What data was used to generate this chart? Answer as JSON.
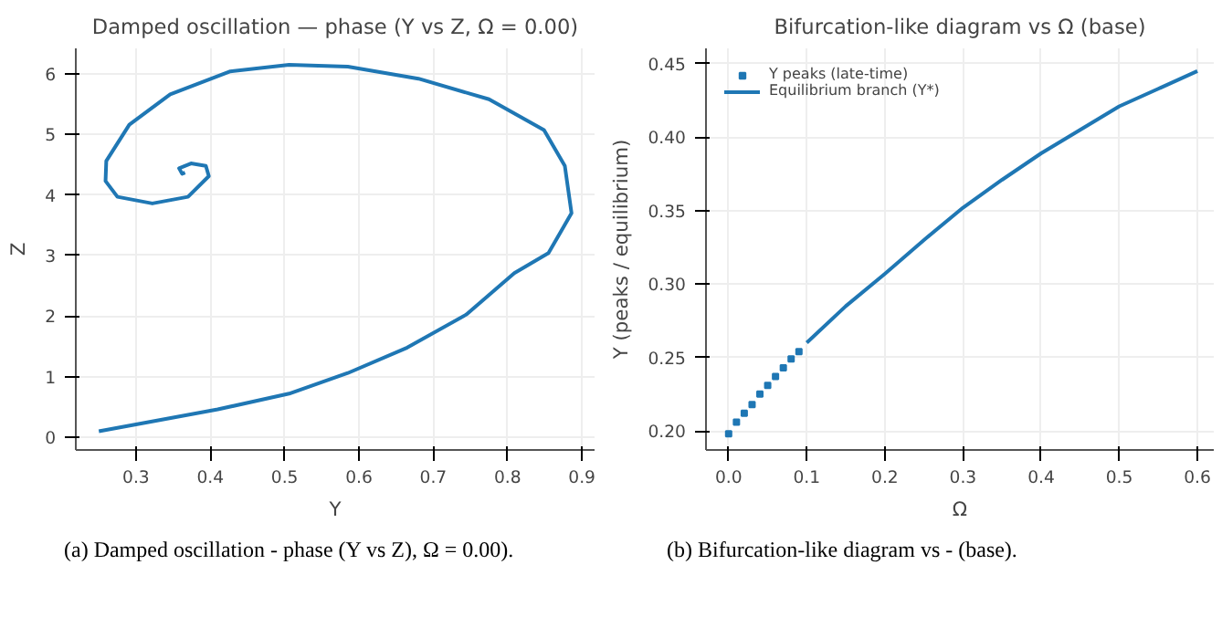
{
  "chart_data": [
    {
      "type": "line",
      "title": "Damped oscillation — phase (Y vs Z, Ω = 0.00)",
      "xlabel": "Y",
      "ylabel": "Z",
      "series": [
        {
          "color": "#1f77b4",
          "x": [
            0.25,
            0.41,
            0.506,
            0.585,
            0.665,
            0.745,
            0.809,
            0.855,
            0.886,
            0.877,
            0.849,
            0.775,
            0.68,
            0.585,
            0.506,
            0.427,
            0.346,
            0.291,
            0.26,
            0.259,
            0.275,
            0.322,
            0.37,
            0.398,
            0.394,
            0.374,
            0.358,
            0.362,
            0.366
          ],
          "values": [
            0.1,
            0.46,
            0.72,
            1.06,
            1.48,
            2.03,
            2.71,
            3.04,
            3.7,
            4.48,
            5.07,
            5.58,
            5.92,
            6.12,
            6.15,
            6.04,
            5.66,
            5.16,
            4.56,
            4.23,
            3.97,
            3.86,
            3.97,
            4.31,
            4.48,
            4.52,
            4.44,
            4.35,
            4.37
          ]
        }
      ],
      "xlim": [
        0.219,
        0.917
      ],
      "ylim": [
        -0.21,
        6.42
      ],
      "xticks": [
        0.3,
        0.4,
        0.5,
        0.6,
        0.7,
        0.8,
        0.9
      ],
      "yticks": [
        0,
        1,
        2,
        3,
        4,
        5,
        6
      ],
      "grid": true,
      "legend": false,
      "annotations": [
        "(a) Damped oscillation - phase (Y vs Z), Ω = 0.00)."
      ]
    },
    {
      "type": "line",
      "title": "Bifurcation-like diagram vs Ω (base)",
      "xlabel": "Ω",
      "ylabel": "Y (peaks / equilibrium)",
      "series": [
        {
          "type": "scatter",
          "name": "Y peaks (late-time)",
          "color": "#1f77b4",
          "marker": "square",
          "x": [
            0,
            0.01,
            0.02,
            0.03,
            0.04,
            0.05,
            0.06,
            0.07,
            0.08,
            0.09
          ],
          "values": [
            0.198,
            0.206,
            0.212,
            0.218,
            0.225,
            0.231,
            0.237,
            0.243,
            0.249,
            0.254
          ]
        },
        {
          "type": "line",
          "name": "Equilibrium branch (Y*)",
          "color": "#1f77b4",
          "x": [
            0.1,
            0.15,
            0.2,
            0.25,
            0.3,
            0.35,
            0.4,
            0.45,
            0.5,
            0.55,
            0.6
          ],
          "values": [
            0.26,
            0.285,
            0.307,
            0.33,
            0.352,
            0.371,
            0.389,
            0.405,
            0.421,
            0.433,
            0.445
          ]
        }
      ],
      "xlim": [
        -0.029,
        0.621
      ],
      "ylim": [
        0.187,
        0.4605
      ],
      "xticks": [
        {
          "value": 0,
          "label": "0.0"
        },
        {
          "value": 0.1,
          "label": "0.1"
        },
        {
          "value": 0.2,
          "label": "0.2"
        },
        {
          "value": 0.3,
          "label": "0.3"
        },
        {
          "value": 0.4,
          "label": "0.4"
        },
        {
          "value": 0.5,
          "label": "0.5"
        },
        {
          "value": 0.6,
          "label": "0.6"
        }
      ],
      "yticks": [
        {
          "value": 0.2,
          "label": "0.20"
        },
        {
          "value": 0.25,
          "label": "0.25"
        },
        {
          "value": 0.3,
          "label": "0.30"
        },
        {
          "value": 0.35,
          "label": "0.35"
        },
        {
          "value": 0.4,
          "label": "0.40"
        },
        {
          "value": 0.45,
          "label": "0.45"
        }
      ],
      "grid": true,
      "legend": "top left",
      "annotations": [
        "(b) Bifurcation-like diagram vs - (base)."
      ]
    }
  ]
}
